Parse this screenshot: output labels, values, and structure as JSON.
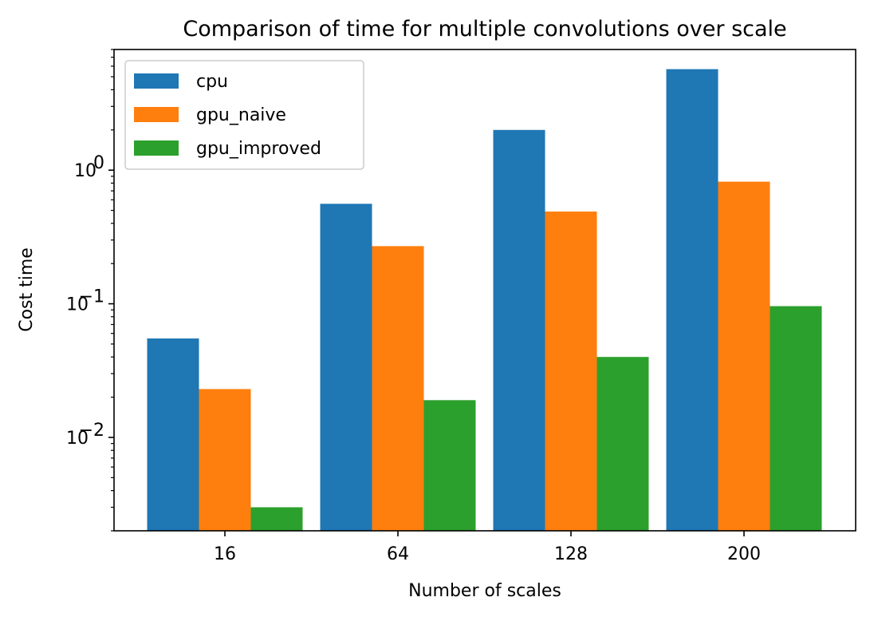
{
  "chart_data": {
    "type": "bar",
    "title": "Comparison of time for multiple convolutions over scale",
    "xlabel": "Number of scales",
    "ylabel": "Cost time",
    "yscale": "log",
    "ylim": [
      0.002,
      8
    ],
    "categories": [
      "16",
      "64",
      "128",
      "200"
    ],
    "y_major_ticks": [
      {
        "value": 0.01,
        "mantissa": "10",
        "exponent": "−2"
      },
      {
        "value": 0.1,
        "mantissa": "10",
        "exponent": "−1"
      },
      {
        "value": 1,
        "mantissa": "10",
        "exponent": "0"
      }
    ],
    "series": [
      {
        "name": "cpu",
        "color": "#1f77b4",
        "values": [
          0.055,
          0.56,
          2.0,
          5.7
        ]
      },
      {
        "name": "gpu_naive",
        "color": "#ff7f0e",
        "values": [
          0.023,
          0.27,
          0.49,
          0.82
        ]
      },
      {
        "name": "gpu_improved",
        "color": "#2ca02c",
        "values": [
          0.003,
          0.019,
          0.04,
          0.096
        ]
      }
    ],
    "legend": {
      "position": "upper-left"
    },
    "grid": false
  }
}
